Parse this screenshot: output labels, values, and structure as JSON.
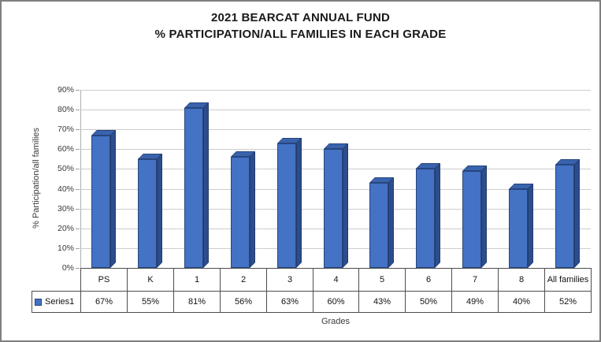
{
  "title": {
    "line1": "2021 BEARCAT ANNUAL FUND",
    "line2": "% PARTICIPATION/ALL FAMILIES IN EACH GRADE"
  },
  "chart_data": {
    "type": "bar",
    "style": "3d-column",
    "title": "2021 BEARCAT ANNUAL FUND % PARTICIPATION/ALL FAMILIES IN EACH GRADE",
    "categories": [
      "PS",
      "K",
      "1",
      "2",
      "3",
      "4",
      "5",
      "6",
      "7",
      "8",
      "All families"
    ],
    "series": [
      {
        "name": "Series1",
        "values": [
          67,
          55,
          81,
          56,
          63,
          60,
          43,
          50,
          49,
          40,
          52
        ]
      }
    ],
    "value_labels": [
      "67%",
      "55%",
      "81%",
      "56%",
      "63%",
      "60%",
      "43%",
      "50%",
      "49%",
      "40%",
      "52%"
    ],
    "xlabel": "Grades",
    "ylabel": "% Participation/all families",
    "ylim": [
      0,
      90
    ],
    "ytick_step": 10,
    "ytick_labels": [
      "0%",
      "10%",
      "20%",
      "30%",
      "40%",
      "50%",
      "60%",
      "70%",
      "80%",
      "90%"
    ],
    "grid": true,
    "legend": {
      "label": "Series1",
      "position": "table-left",
      "swatch_color": "#4472C4"
    },
    "data_table_shown": true,
    "colors": {
      "bar_front": "#4472C4",
      "bar_top": "#3a63ae",
      "bar_side": "#2c4d8c",
      "bar_outline": "#27457e",
      "gridline": "#cccccc",
      "table_border": "#4d4d4d",
      "title_text": "#1a1a1a"
    }
  }
}
